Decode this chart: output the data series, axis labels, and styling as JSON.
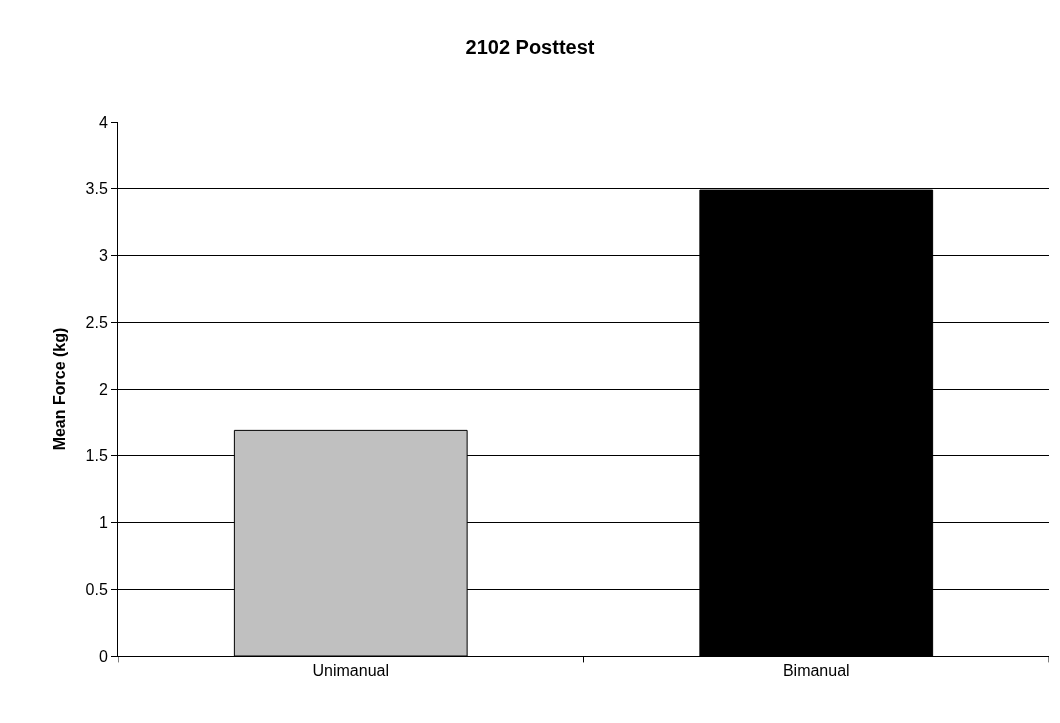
{
  "chart_data": {
    "type": "bar",
    "title": "2102 Posttest",
    "ylabel": "Mean Force (kg)",
    "categories": [
      "Unimanual",
      "Bimanual"
    ],
    "values": [
      1.69,
      3.49
    ],
    "colors": [
      "#c0c0c0",
      "#000000"
    ],
    "ylim": [
      0,
      4
    ],
    "yticks": [
      0,
      0.5,
      1,
      1.5,
      2,
      2.5,
      3,
      3.5,
      4
    ],
    "grid": "y"
  }
}
